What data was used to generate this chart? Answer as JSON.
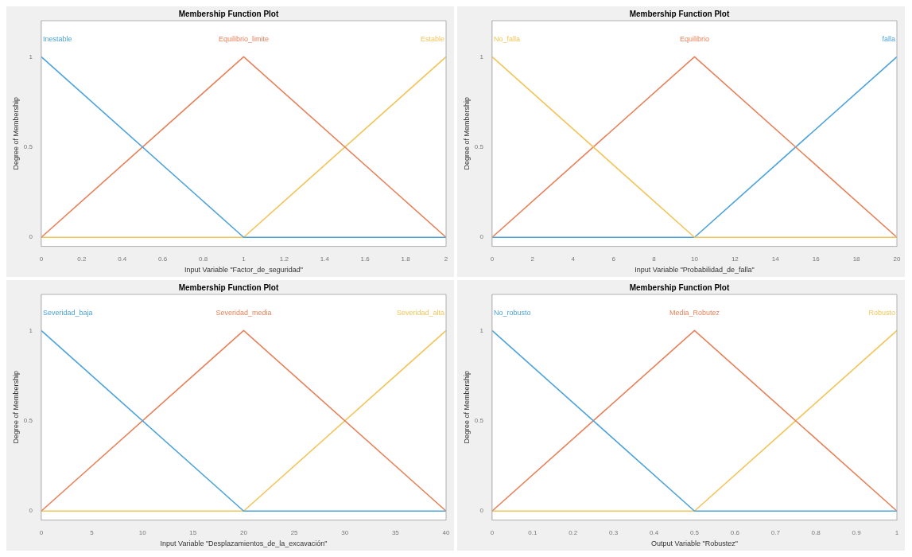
{
  "chart_data": [
    {
      "type": "line",
      "title": "Membership Function Plot",
      "xlabel": "Input Variable \"Factor_de_seguridad\"",
      "ylabel": "Degree of Membership",
      "x": [
        0,
        1,
        2
      ],
      "xlim": [
        0,
        2
      ],
      "xticks": [
        0,
        0.2,
        0.4,
        0.6,
        0.8,
        1,
        1.2,
        1.4,
        1.6,
        1.8,
        2
      ],
      "ylim": [
        -0.05,
        1.2
      ],
      "yticks": [
        0,
        0.5,
        1
      ],
      "series": [
        {
          "name": "Inestable",
          "color": "#4da3dc",
          "values": [
            1,
            0,
            0
          ]
        },
        {
          "name": "Equilibrio_limite",
          "color": "#e8825a",
          "values": [
            0,
            1,
            0
          ]
        },
        {
          "name": "Estable",
          "color": "#f2c55a",
          "values": [
            0,
            0,
            1
          ]
        }
      ]
    },
    {
      "type": "line",
      "title": "Membership Function Plot",
      "xlabel": "Input Variable \"Probabilidad_de_falla\"",
      "ylabel": "Degree of Membership",
      "x": [
        0,
        10,
        20
      ],
      "xlim": [
        0,
        20
      ],
      "xticks": [
        0,
        2,
        4,
        6,
        8,
        10,
        12,
        14,
        16,
        18,
        20
      ],
      "ylim": [
        -0.05,
        1.2
      ],
      "yticks": [
        0,
        0.5,
        1
      ],
      "series": [
        {
          "name": "No_falla",
          "color": "#f2c55a",
          "values": [
            1,
            0,
            0
          ]
        },
        {
          "name": "Equilibrio",
          "color": "#e8825a",
          "values": [
            0,
            1,
            0
          ]
        },
        {
          "name": "falla",
          "color": "#4da3dc",
          "values": [
            0,
            0,
            1
          ]
        }
      ]
    },
    {
      "type": "line",
      "title": "Membership Function Plot",
      "xlabel": "Input Variable \"Desplazamientos_de_la_excavación\"",
      "ylabel": "Degree of Membership",
      "x": [
        0,
        20,
        40
      ],
      "xlim": [
        0,
        40
      ],
      "xticks": [
        0,
        5,
        10,
        15,
        20,
        25,
        30,
        35,
        40
      ],
      "ylim": [
        -0.05,
        1.2
      ],
      "yticks": [
        0,
        0.5,
        1
      ],
      "series": [
        {
          "name": "Severidad_baja",
          "color": "#4da3dc",
          "values": [
            1,
            0,
            0
          ]
        },
        {
          "name": "Severidad_media",
          "color": "#e8825a",
          "values": [
            0,
            1,
            0
          ]
        },
        {
          "name": "Severidad_alta",
          "color": "#f2c55a",
          "values": [
            0,
            0,
            1
          ]
        }
      ]
    },
    {
      "type": "line",
      "title": "Membership Function Plot",
      "xlabel": "Output Variable \"Robustez\"",
      "ylabel": "Degree of Membership",
      "x": [
        0,
        0.5,
        1
      ],
      "xlim": [
        0,
        1
      ],
      "xticks": [
        0,
        0.1,
        0.2,
        0.3,
        0.4,
        0.5,
        0.6,
        0.7,
        0.8,
        0.9,
        1
      ],
      "ylim": [
        -0.05,
        1.2
      ],
      "yticks": [
        0,
        0.5,
        1
      ],
      "series": [
        {
          "name": "No_robusto",
          "color": "#4da3dc",
          "values": [
            1,
            0,
            0
          ]
        },
        {
          "name": "Media_Robutez",
          "color": "#e8825a",
          "values": [
            0,
            1,
            0
          ]
        },
        {
          "name": "Robusto",
          "color": "#f2c55a",
          "values": [
            0,
            0,
            1
          ]
        }
      ]
    }
  ]
}
